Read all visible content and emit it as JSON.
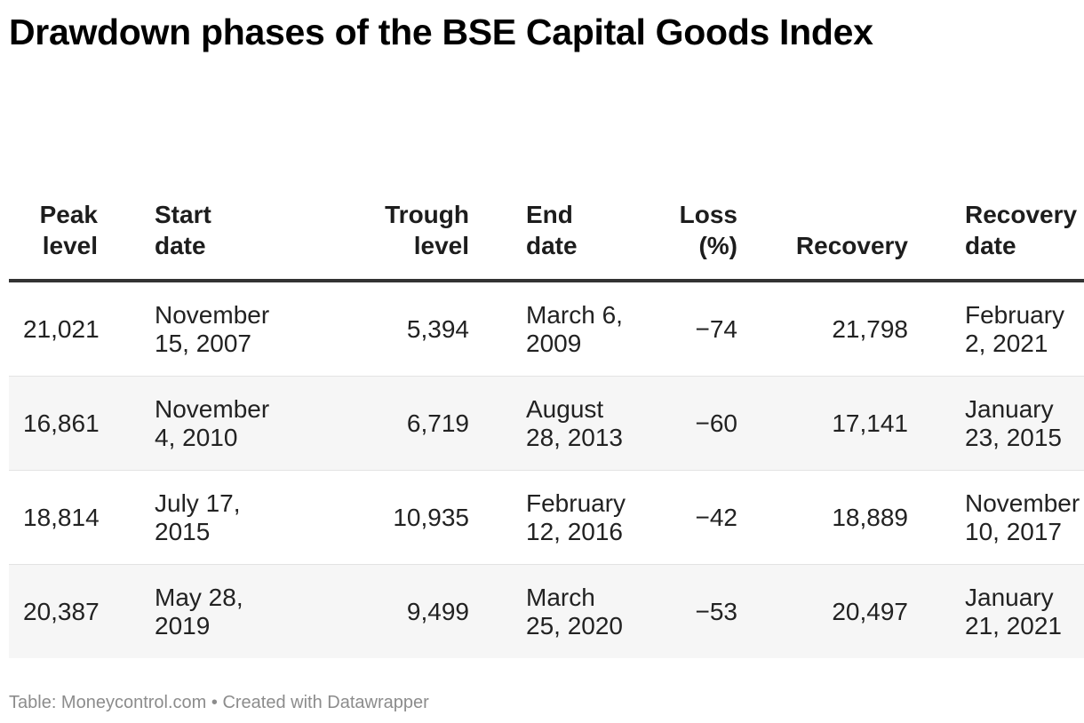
{
  "title": "Drawdown phases of the BSE Capital Goods Index",
  "footer": "Table: Moneycontrol.com • Created with Datawrapper",
  "chart_data": {
    "type": "table",
    "title": "Drawdown phases of the BSE Capital Goods Index",
    "columns": [
      [
        "Peak",
        "level"
      ],
      [
        "Start",
        "date"
      ],
      [
        "Trough",
        "level"
      ],
      [
        "End",
        "date"
      ],
      [
        "Loss",
        "(%)"
      ],
      [
        "",
        "Recovery"
      ],
      [
        "Recovery",
        "date"
      ]
    ],
    "rows": [
      [
        "21,021",
        [
          "November",
          "15, 2007"
        ],
        "5,394",
        [
          "March 6,",
          "2009"
        ],
        "−74",
        "21,798",
        [
          "February",
          "2, 2021"
        ]
      ],
      [
        "16,861",
        [
          "November",
          "4, 2010"
        ],
        "6,719",
        [
          "August",
          "28, 2013"
        ],
        "−60",
        "17,141",
        [
          "January",
          "23, 2015"
        ]
      ],
      [
        "18,814",
        [
          "July 17,",
          "2015"
        ],
        "10,935",
        [
          "February",
          "12, 2016"
        ],
        "−42",
        "18,889",
        [
          "November",
          "10, 2017"
        ]
      ],
      [
        "20,387",
        [
          "May 28,",
          "2019"
        ],
        "9,499",
        [
          "March",
          "25, 2020"
        ],
        "−53",
        "20,497",
        [
          "January",
          "21, 2021"
        ]
      ]
    ]
  }
}
